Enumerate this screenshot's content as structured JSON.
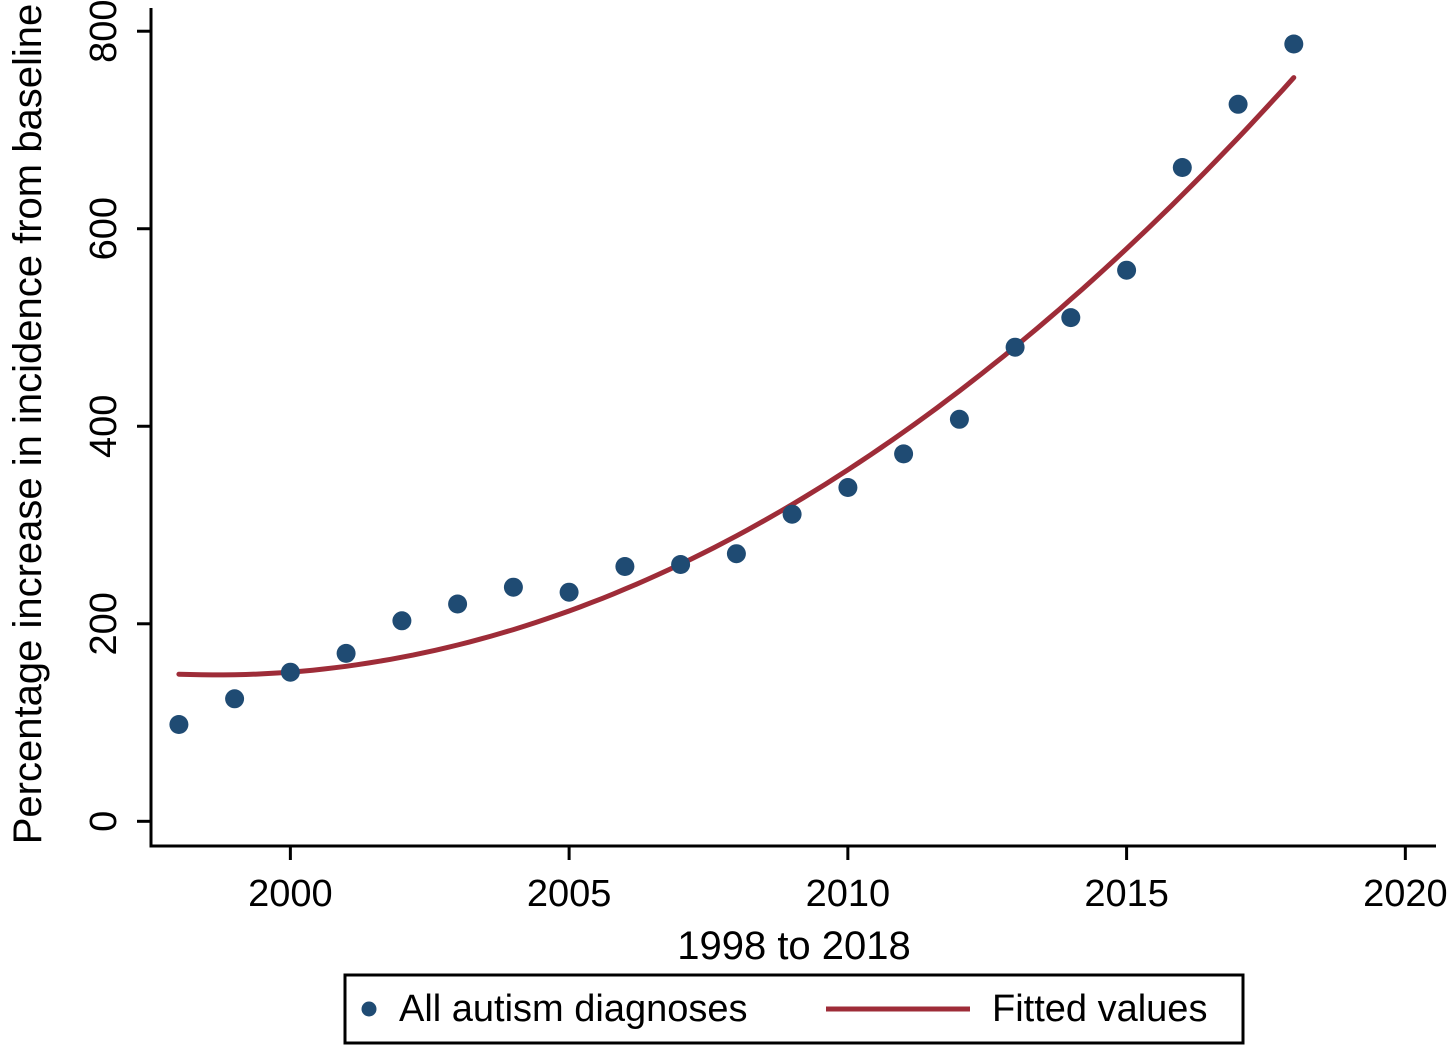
{
  "figure": {
    "background": "#ffffff"
  },
  "chart_data": {
    "type": "scatter",
    "title": "",
    "xlabel": "1998 to 2018",
    "ylabel": "Percentage increase in incidence from baseline",
    "x": [
      1998,
      1999,
      2000,
      2001,
      2002,
      2003,
      2004,
      2005,
      2006,
      2007,
      2008,
      2009,
      2010,
      2011,
      2012,
      2013,
      2014,
      2015,
      2016,
      2017,
      2018
    ],
    "series": [
      {
        "name": "All autism diagnoses",
        "type": "scatter",
        "marker": "circle",
        "color": "#1f4b73",
        "values": [
          98,
          124,
          151,
          170,
          203,
          220,
          237,
          232,
          258,
          260,
          271,
          311,
          338,
          372,
          407,
          480,
          510,
          558,
          662,
          726,
          787
        ]
      },
      {
        "name": "Fitted values",
        "type": "line",
        "color": "#9e2c38",
        "fit": {
          "kind": "quadratic",
          "origin_year": 1998,
          "a": 149,
          "b": -2.2,
          "c": 1.62,
          "x_start": 1998,
          "x_end": 2018
        },
        "values": [
          149.0,
          148.4,
          151.1,
          157.0,
          166.1,
          178.5,
          194.1,
          213.0,
          235.1,
          260.4,
          289.0,
          320.8,
          355.9,
          394.2,
          435.7,
          480.5,
          528.5,
          579.8,
          634.3,
          692.0,
          753.0
        ]
      }
    ],
    "x_ticks": [
      2000,
      2005,
      2010,
      2015,
      2020
    ],
    "y_ticks": [
      0,
      200,
      400,
      600,
      800
    ],
    "xlim": [
      1997.5,
      2020.55
    ],
    "ylim": [
      -25,
      823.5
    ],
    "grid": false,
    "legend": {
      "position": "bottom-center",
      "entries": [
        {
          "label": "All autism diagnoses",
          "marker": "dot",
          "color": "#1f4b73"
        },
        {
          "label": "Fitted values",
          "marker": "line",
          "color": "#9e2c38"
        }
      ]
    },
    "axis_color": "#000000",
    "text_color": "#000000"
  }
}
